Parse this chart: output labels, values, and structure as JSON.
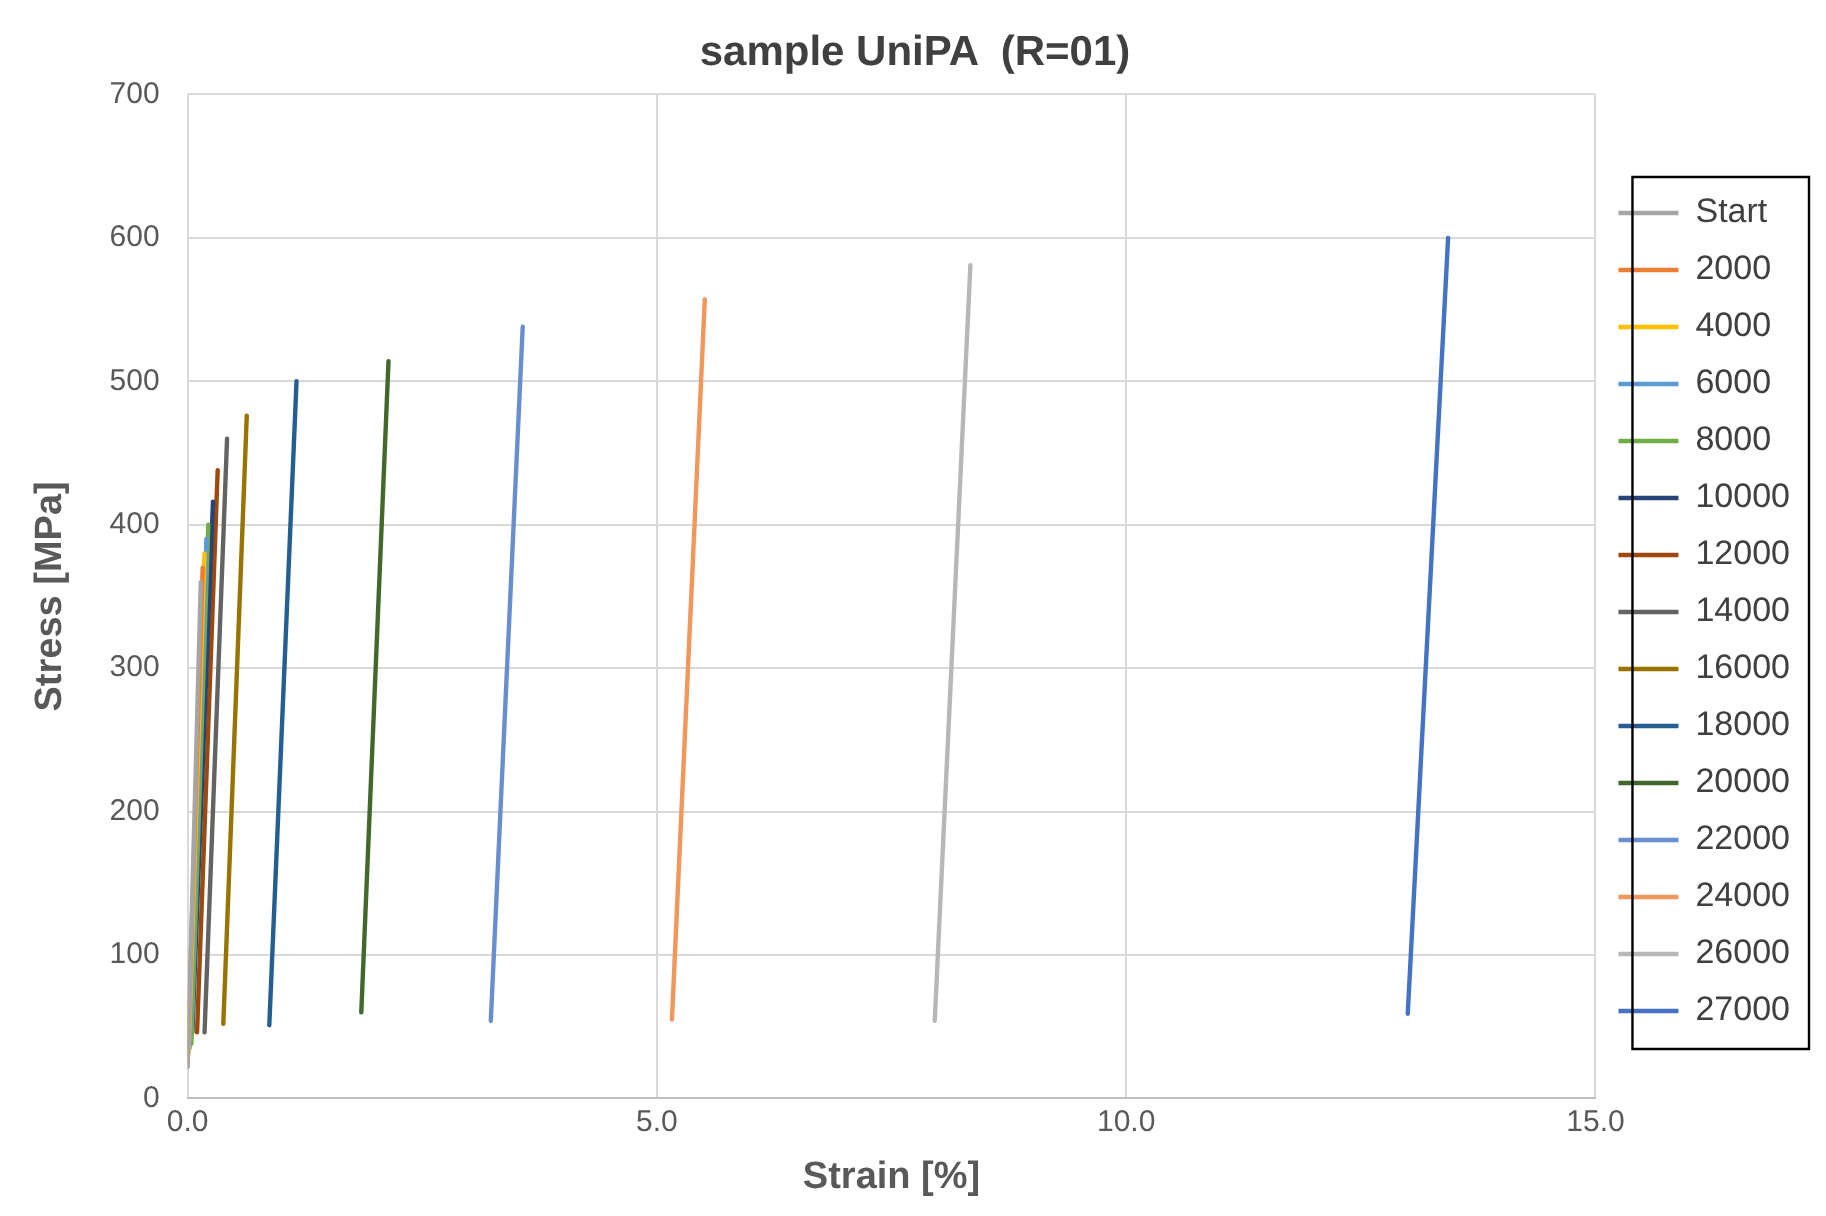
{
  "chart_data": {
    "type": "line",
    "title": "sample UniPA  (R=01)",
    "xlabel": "Strain [%]",
    "ylabel": "Stress [MPa]",
    "xlim": [
      0,
      15
    ],
    "xticks": [
      {
        "value": 0,
        "label": "0.0"
      },
      {
        "value": 5,
        "label": "5.0"
      },
      {
        "value": 10,
        "label": "10.0"
      },
      {
        "value": 15,
        "label": "15.0"
      }
    ],
    "ylim": [
      0,
      700
    ],
    "yticks": [
      0,
      100,
      200,
      300,
      400,
      500,
      600,
      700
    ],
    "grid": true,
    "legend": "right",
    "marker": "none",
    "line_style": "solid",
    "series": [
      {
        "name": "Start",
        "color": "#a5a5a5",
        "x": [
          0.0,
          0.14
        ],
        "values": [
          22,
          360
        ]
      },
      {
        "name": "2000",
        "color": "#ed7d31",
        "x": [
          0.0,
          0.16
        ],
        "values": [
          25,
          370
        ]
      },
      {
        "name": "4000",
        "color": "#ffc000",
        "x": [
          0.01,
          0.18
        ],
        "values": [
          32,
          380
        ]
      },
      {
        "name": "6000",
        "color": "#5b9bd5",
        "x": [
          0.02,
          0.2
        ],
        "values": [
          35,
          390
        ]
      },
      {
        "name": "8000",
        "color": "#70ad47",
        "x": [
          0.04,
          0.22
        ],
        "values": [
          38,
          400
        ]
      },
      {
        "name": "10000",
        "color": "#264478",
        "x": [
          0.05,
          0.27
        ],
        "values": [
          46,
          416
        ]
      },
      {
        "name": "12000",
        "color": "#9e480e",
        "x": [
          0.1,
          0.32
        ],
        "values": [
          46,
          438
        ]
      },
      {
        "name": "14000",
        "color": "#636363",
        "x": [
          0.18,
          0.42
        ],
        "values": [
          46,
          460
        ]
      },
      {
        "name": "16000",
        "color": "#997300",
        "x": [
          0.38,
          0.63
        ],
        "values": [
          52,
          476
        ]
      },
      {
        "name": "18000",
        "color": "#255e91",
        "x": [
          0.87,
          1.16
        ],
        "values": [
          51,
          500
        ]
      },
      {
        "name": "20000",
        "color": "#43682b",
        "x": [
          1.85,
          2.14
        ],
        "values": [
          60,
          514
        ]
      },
      {
        "name": "22000",
        "color": "#698ed0",
        "x": [
          3.23,
          3.57
        ],
        "values": [
          54,
          538
        ]
      },
      {
        "name": "24000",
        "color": "#f1975a",
        "x": [
          5.16,
          5.51
        ],
        "values": [
          55,
          557
        ]
      },
      {
        "name": "26000",
        "color": "#b7b7b7",
        "x": [
          7.96,
          8.34
        ],
        "values": [
          54,
          581
        ]
      },
      {
        "name": "27000",
        "color": "#4472c4",
        "x": [
          13.0,
          13.43
        ],
        "values": [
          59,
          600
        ]
      }
    ]
  }
}
